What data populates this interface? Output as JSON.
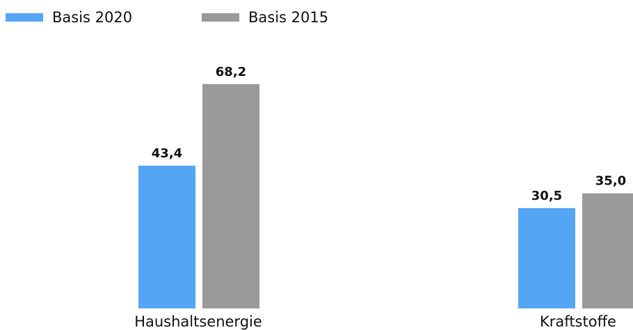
{
  "chart_data": {
    "type": "bar",
    "categories": [
      "Haushaltsenergie",
      "Kraftstoffe"
    ],
    "series": [
      {
        "name": "Basis 2020",
        "color": "#54a6f5",
        "values": [
          43.4,
          30.5
        ],
        "value_labels": [
          "43,4",
          "30,5"
        ]
      },
      {
        "name": "Basis 2015",
        "color": "#9a9a9a",
        "values": [
          68.2,
          35.0
        ],
        "value_labels": [
          "68,2",
          "35,0"
        ]
      }
    ],
    "ylim": [
      0,
      80
    ],
    "legend": "top-left"
  }
}
